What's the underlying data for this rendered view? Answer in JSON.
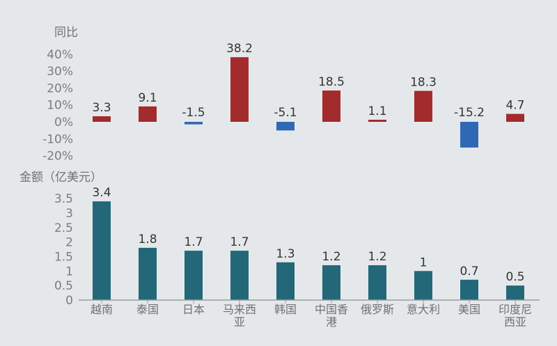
{
  "chart_data": [
    {
      "type": "bar",
      "ylabel": "同比",
      "categories": [
        "越南",
        "泰国",
        "日本",
        "马来西亚",
        "韩国",
        "中国香港",
        "俄罗斯",
        "意大利",
        "美国",
        "印度尼西亚"
      ],
      "values": [
        3.3,
        9.1,
        -1.5,
        38.2,
        -5.1,
        18.5,
        1.1,
        18.3,
        -15.2,
        4.7
      ],
      "data_labels": [
        "3.3",
        "9.1",
        "-1.5",
        "38.2",
        "-5.1",
        "18.5",
        "1.1",
        "18.3",
        "-15.2",
        "4.7"
      ],
      "yticks": [
        "40%",
        "30%",
        "20%",
        "10%",
        "0%",
        "-10%",
        "-20%"
      ],
      "ylim": [
        -20,
        40
      ],
      "unit": "%",
      "colors": {
        "positive": "#a32b2c",
        "negative": "#2f69b3"
      }
    },
    {
      "type": "bar",
      "ylabel": "金额（亿美元）",
      "categories": [
        "越南",
        "泰国",
        "日本",
        "马来西亚",
        "韩国",
        "中国香港",
        "俄罗斯",
        "意大利",
        "美国",
        "印度尼西亚"
      ],
      "category_lines": [
        [
          "越南"
        ],
        [
          "泰国"
        ],
        [
          "日本"
        ],
        [
          "马来西",
          "亚"
        ],
        [
          "韩国"
        ],
        [
          "中国香",
          "港"
        ],
        [
          "俄罗斯"
        ],
        [
          "意大利"
        ],
        [
          "美国"
        ],
        [
          "印度尼",
          "西亚"
        ]
      ],
      "values": [
        3.4,
        1.8,
        1.7,
        1.7,
        1.3,
        1.2,
        1.2,
        1.0,
        0.7,
        0.5
      ],
      "data_labels": [
        "3.4",
        "1.8",
        "1.7",
        "1.7",
        "1.3",
        "1.2",
        "1.2",
        "1",
        "0.7",
        "0.5"
      ],
      "yticks": [
        "3.5",
        "3",
        "2.5",
        "2",
        "1.5",
        "1",
        "0.5",
        "0"
      ],
      "ylim": [
        0,
        3.5
      ],
      "colors": {
        "bar": "#236878",
        "axis": "#9a9da0"
      }
    }
  ]
}
